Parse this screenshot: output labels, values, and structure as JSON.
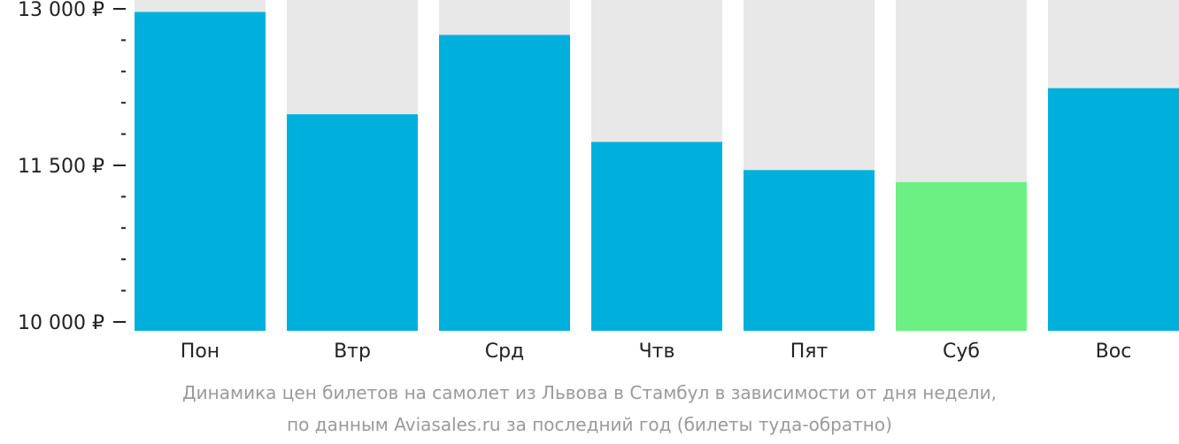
{
  "chart_data": {
    "type": "bar",
    "categories": [
      "Пон",
      "Втр",
      "Срд",
      "Чтв",
      "Пят",
      "Суб",
      "Вос"
    ],
    "values": [
      12970,
      11990,
      12750,
      11725,
      11455,
      11340,
      12240
    ],
    "ylim": [
      10000,
      13000
    ],
    "yticks": [
      {
        "value": 13000,
        "label": "13 000 ₽"
      },
      {
        "value": 11500,
        "label": "11 500 ₽"
      },
      {
        "value": 10000,
        "label": "10 000 ₽"
      }
    ],
    "minor_tick_step": 300,
    "highlight_category": "Суб",
    "grid": false,
    "legend": "none"
  },
  "colors": {
    "bar": "#00b0dc",
    "bar_highlight": "#6cf084",
    "bar_background": "#e8e8e8",
    "axis_text": "#222222",
    "caption_text": "#9a9a9a"
  },
  "caption": {
    "line1": "Динамика цен билетов на самолет из Львова в Стамбул в зависимости от дня недели,",
    "line2": "по данным Aviasales.ru за последний год (билеты туда-обратно)"
  }
}
